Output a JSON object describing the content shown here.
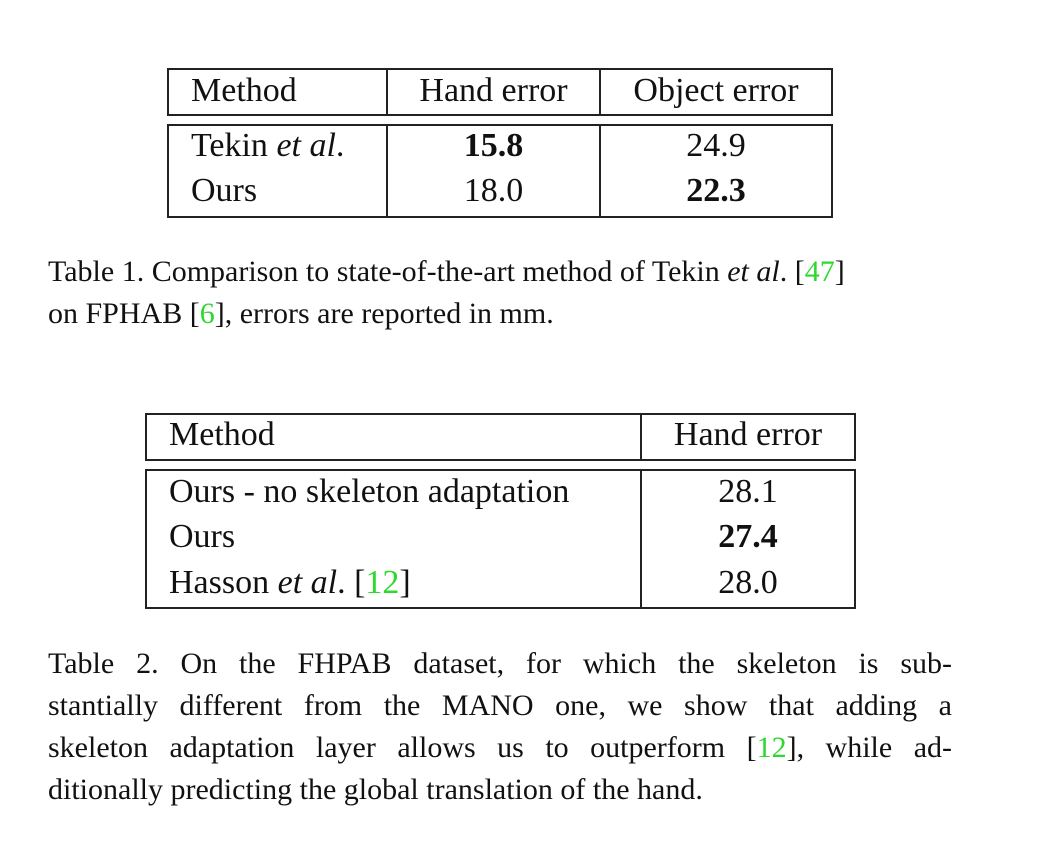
{
  "table1": {
    "headers": [
      "Method",
      "Hand error",
      "Object error"
    ],
    "rows": [
      {
        "method": "Tekin ",
        "method_italic": "et al",
        "method_after": ".",
        "hand": "15.8",
        "object": "24.9"
      },
      {
        "method": "Ours",
        "hand": "18.0",
        "object": "22.3"
      }
    ],
    "caption": {
      "part1": "Table 1. Comparison to state-of-the-art method of Tekin ",
      "italic": "et al",
      "part2": ". [",
      "cite1": "47",
      "part3": "]",
      "line2_a": "on FPHAB [",
      "cite2": "6",
      "line2_b": "], errors are reported in mm."
    }
  },
  "table2": {
    "headers": [
      "Method",
      "Hand error"
    ],
    "rows": [
      {
        "method": "Ours - no skeleton adaptation",
        "hand": "28.1"
      },
      {
        "method": "Ours",
        "hand": "27.4"
      },
      {
        "method": "Hasson ",
        "method_italic": "et al",
        "method_after": ". [",
        "cite": "12",
        "method_end": "]",
        "hand": "28.0"
      }
    ],
    "caption": {
      "line1": "Table 2. On the FHPAB dataset, for which the skeleton is sub-",
      "line2": "stantially different from the MANO one, we show that adding a",
      "line3_a": "skeleton adaptation layer allows us to outperform [",
      "cite": "12",
      "line3_b": "], while ad-",
      "line4": "ditionally predicting the global translation of the hand."
    }
  },
  "colors": {
    "citation": "#2fd82f",
    "rule": "#222222"
  }
}
